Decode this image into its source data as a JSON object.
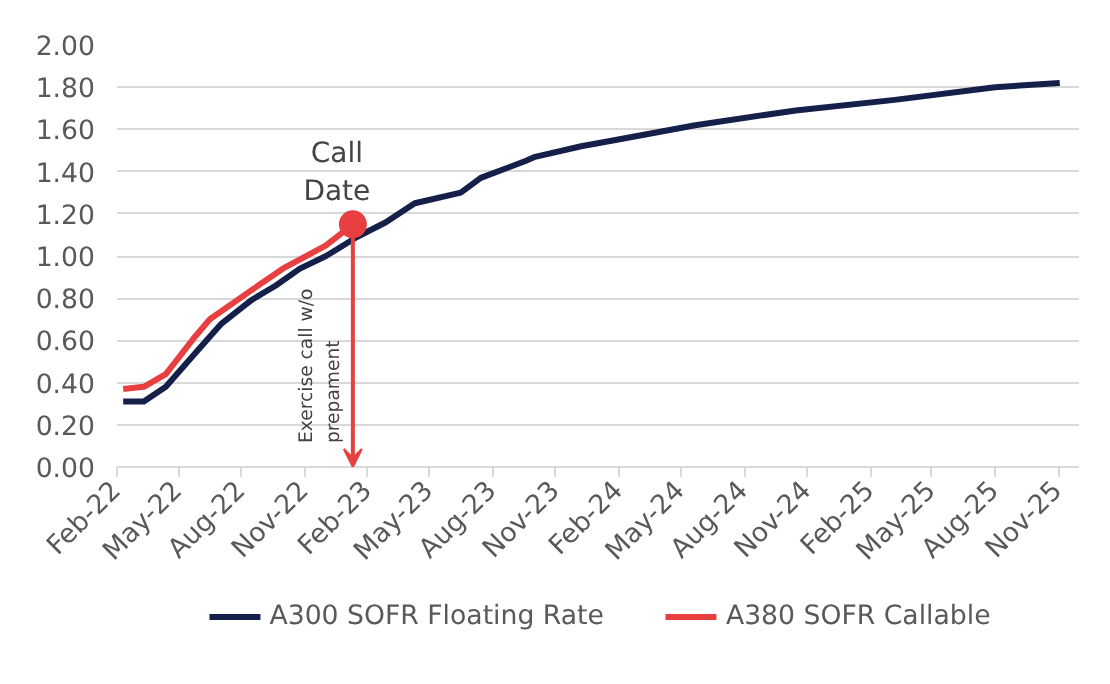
{
  "chart_data": {
    "type": "line",
    "series": [
      {
        "name": "A300 SOFR Floating Rate",
        "color": "#14204a",
        "x": [
          "2022-02-10",
          "2022-03-12",
          "2022-04-13",
          "2022-05-26",
          "2022-07-03",
          "2022-08-15",
          "2022-09-20",
          "2022-10-25",
          "2022-12-02",
          "2023-01-16",
          "2023-02-27",
          "2023-04-10",
          "2023-06-16",
          "2023-07-15",
          "2023-09-18",
          "2023-10-02",
          "2023-12-08",
          "2024-01-27",
          "2024-05-22",
          "2024-10-15",
          "2025-03-08",
          "2025-08-01",
          "2025-11-03"
        ],
        "values": [
          0.31,
          0.31,
          0.38,
          0.54,
          0.68,
          0.79,
          0.86,
          0.94,
          1.0,
          1.09,
          1.16,
          1.25,
          1.3,
          1.37,
          1.45,
          1.47,
          1.52,
          1.55,
          1.62,
          1.69,
          1.74,
          1.8,
          1.82
        ]
      },
      {
        "name": "A380 SOFR Callable",
        "color": "#e84040",
        "x": [
          "2022-02-10",
          "2022-03-12",
          "2022-04-13",
          "2022-05-26",
          "2022-06-16",
          "2022-08-12",
          "2022-09-30",
          "2022-12-02",
          "2023-01-10"
        ],
        "values": [
          0.37,
          0.38,
          0.44,
          0.62,
          0.7,
          0.83,
          0.94,
          1.05,
          1.15
        ]
      }
    ],
    "annotations": [
      {
        "text": "Call\nDate",
        "x": "2023-01-10",
        "y": 1.15
      },
      "Exercise  call w/o\nprepament"
    ],
    "xlim": [
      "2022-02-01",
      "2025-12-01"
    ],
    "xticks": [
      {
        "value": "2022-02-01",
        "label": "Feb-22"
      },
      {
        "value": "2022-05-01",
        "label": "May-22"
      },
      {
        "value": "2022-08-01",
        "label": "Aug-22"
      },
      {
        "value": "2022-11-01",
        "label": "Nov-22"
      },
      {
        "value": "2023-02-01",
        "label": "Feb-23"
      },
      {
        "value": "2023-05-01",
        "label": "May-23"
      },
      {
        "value": "2023-08-01",
        "label": "Aug-23"
      },
      {
        "value": "2023-11-01",
        "label": "Nov-23"
      },
      {
        "value": "2024-02-01",
        "label": "Feb-24"
      },
      {
        "value": "2024-05-01",
        "label": "May-24"
      },
      {
        "value": "2024-08-01",
        "label": "Aug-24"
      },
      {
        "value": "2024-11-01",
        "label": "Nov-24"
      },
      {
        "value": "2025-02-01",
        "label": "Feb-25"
      },
      {
        "value": "2025-05-01",
        "label": "May-25"
      },
      {
        "value": "2025-08-01",
        "label": "Aug-25"
      },
      {
        "value": "2025-11-01",
        "label": "Nov-25"
      }
    ],
    "ylim": [
      0,
      2.0
    ],
    "yticks": [
      {
        "value": 0,
        "label": "0.00"
      },
      {
        "value": 0.2,
        "label": "0.20"
      },
      {
        "value": 0.4,
        "label": "0.40"
      },
      {
        "value": 0.6,
        "label": "0.60"
      },
      {
        "value": 0.8,
        "label": "0.80"
      },
      {
        "value": 1.0,
        "label": "1.00"
      },
      {
        "value": 1.2,
        "label": "1.20"
      },
      {
        "value": 1.4,
        "label": "1.40"
      },
      {
        "value": 1.6,
        "label": "1.60"
      },
      {
        "value": 1.8,
        "label": "1.80"
      },
      {
        "value": 2.0,
        "label": "2.00"
      }
    ],
    "grid": "y",
    "legend": "bottom"
  }
}
